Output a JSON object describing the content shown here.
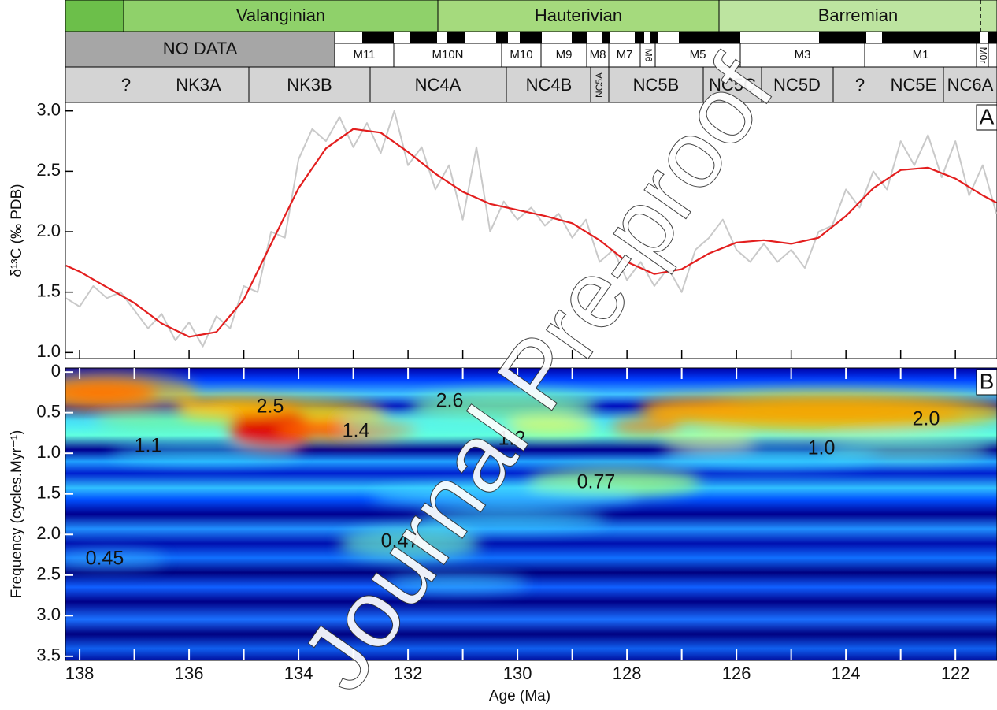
{
  "stages": [
    "Valanginian",
    "Hauterivian",
    "Barremian"
  ],
  "magnetostratigraphy": {
    "no_data": "NO DATA",
    "chrons": [
      "M11",
      "M10N",
      "M10",
      "M9",
      "M8",
      "M7",
      "M6",
      "M5",
      "M3",
      "M1",
      "M0r"
    ]
  },
  "nannofossil_zones": [
    "?",
    "NK3A",
    "NK3B",
    "NC4A",
    "NC4B",
    "NC5A",
    "NC5B",
    "NC5C",
    "NC5D",
    "?",
    "NC5E",
    "NC6A"
  ],
  "watermark": "Journal Pre-proof",
  "chart_data": [
    {
      "type": "line",
      "panel": "A",
      "y_label": "δ¹³C (‰ PDB)",
      "xlim": [
        138.26,
        121.24
      ],
      "xticks": [
        138,
        137,
        136,
        135,
        134,
        133,
        132,
        131,
        130,
        129,
        128,
        127,
        126,
        125,
        124,
        123,
        122
      ],
      "ylim": [
        0.95,
        3.07
      ],
      "yticks": [
        {
          "value": 1,
          "label": "1.0"
        },
        1.5,
        {
          "value": 2,
          "label": "2.0"
        },
        2.5,
        {
          "value": 3,
          "label": "3.0"
        }
      ],
      "series": [
        {
          "color": "#c9c9c9",
          "x": [
            138.25,
            138,
            137.75,
            137.5,
            137.25,
            137,
            136.75,
            136.5,
            136.25,
            136,
            135.75,
            135.5,
            135.25,
            135,
            134.75,
            134.5,
            134.25,
            134,
            133.75,
            133.5,
            133.25,
            133,
            132.75,
            132.5,
            132.25,
            132,
            131.75,
            131.5,
            131.25,
            131,
            130.75,
            130.5,
            130.25,
            130,
            129.75,
            129.5,
            129.25,
            129,
            128.75,
            128.5,
            128.25,
            128,
            127.75,
            127.5,
            127.25,
            127,
            126.75,
            126.5,
            126.25,
            126,
            125.75,
            125.5,
            125.25,
            125,
            124.75,
            124.5,
            124.25,
            124,
            123.75,
            123.5,
            123.25,
            123,
            122.75,
            122.5,
            122.25,
            122,
            121.75,
            121.5,
            121.25
          ],
          "values": [
            1.45,
            1.38,
            1.55,
            1.45,
            1.5,
            1.35,
            1.2,
            1.32,
            1.1,
            1.25,
            1.05,
            1.3,
            1.2,
            1.55,
            1.5,
            2.0,
            1.95,
            2.6,
            2.85,
            2.75,
            2.95,
            2.7,
            2.9,
            2.65,
            3.0,
            2.55,
            2.7,
            2.35,
            2.55,
            2.1,
            2.7,
            2.0,
            2.25,
            2.1,
            2.2,
            2.05,
            2.15,
            1.95,
            2.1,
            1.75,
            1.85,
            1.6,
            1.75,
            1.55,
            1.7,
            1.5,
            1.85,
            1.95,
            2.1,
            1.85,
            1.75,
            1.9,
            1.75,
            1.85,
            1.7,
            2.0,
            2.05,
            2.35,
            2.2,
            2.5,
            2.35,
            2.75,
            2.55,
            2.8,
            2.45,
            2.75,
            2.3,
            2.55,
            2.15
          ]
        },
        {
          "color": "#e31e1e",
          "x": [
            138.25,
            138,
            137.5,
            137,
            136.5,
            136,
            135.5,
            135,
            134.5,
            134,
            133.5,
            133,
            132.5,
            132,
            131.5,
            131,
            130.5,
            130,
            129.5,
            129,
            128.5,
            128,
            127.5,
            127,
            126.5,
            126,
            125.5,
            125,
            124.5,
            124,
            123.5,
            123,
            122.5,
            122,
            121.5,
            121.25
          ],
          "values": [
            1.72,
            1.67,
            1.54,
            1.41,
            1.24,
            1.13,
            1.17,
            1.44,
            1.9,
            2.36,
            2.69,
            2.85,
            2.82,
            2.66,
            2.48,
            2.33,
            2.23,
            2.18,
            2.13,
            2.07,
            1.93,
            1.75,
            1.65,
            1.69,
            1.82,
            1.91,
            1.93,
            1.9,
            1.95,
            2.13,
            2.36,
            2.51,
            2.53,
            2.44,
            2.3,
            2.24
          ]
        }
      ]
    },
    {
      "type": "heatmap",
      "panel": "B",
      "x_label": "Age (Ma)",
      "y_label": "Frequency (cycles.Myr⁻¹)",
      "xlim": [
        138.26,
        121.24
      ],
      "xticks": [
        138,
        136,
        134,
        132,
        130,
        128,
        126,
        124,
        122
      ],
      "x_minor_ticks": [
        137,
        135,
        133,
        131,
        129,
        127,
        125,
        123
      ],
      "ylim": [
        3.55,
        -0.05
      ],
      "yticks": [
        0,
        0.5,
        {
          "value": 1,
          "label": "1.0"
        },
        1.5,
        {
          "value": 2,
          "label": "2.0"
        },
        2.5,
        {
          "value": 3,
          "label": "3.0"
        },
        3.5
      ],
      "annotations": [
        "2.5",
        "1.4",
        "1.1",
        "2.6",
        "1.2",
        "0.77",
        "1.0",
        "2.0",
        "0.45",
        "0.47"
      ]
    }
  ]
}
